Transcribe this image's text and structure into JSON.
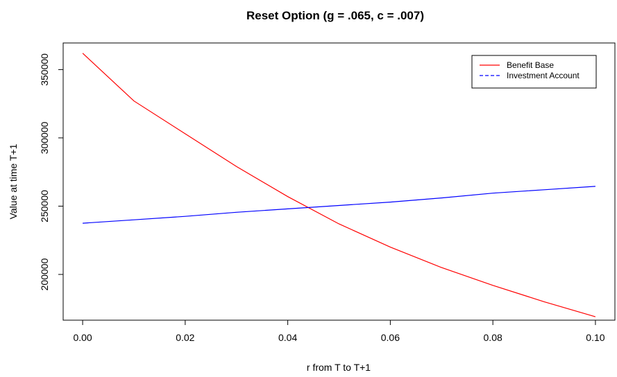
{
  "chart_data": {
    "type": "line",
    "title": "Reset Option (g = .065, c = .007)",
    "xlabel": "r from T to T+1",
    "ylabel": "Value at time T+1",
    "xlim": [
      -0.0038,
      0.1038
    ],
    "ylim": [
      166500,
      369500
    ],
    "x_ticks": [
      0.0,
      0.02,
      0.04,
      0.06,
      0.08,
      0.1
    ],
    "x_tick_labels": [
      "0.00",
      "0.02",
      "0.04",
      "0.06",
      "0.08",
      "0.10"
    ],
    "y_ticks": [
      200000,
      250000,
      300000,
      350000
    ],
    "y_tick_labels": [
      "200000",
      "250000",
      "300000",
      "350000"
    ],
    "grid": false,
    "legend_position": "top-right",
    "series": [
      {
        "name": "Benefit Base",
        "color": "#ff0000",
        "line_style": "solid",
        "x": [
          0.0,
          0.01,
          0.02,
          0.03,
          0.04,
          0.05,
          0.06,
          0.07,
          0.08,
          0.09,
          0.1
        ],
        "y": [
          362000,
          327000,
          303000,
          279000,
          257000,
          237000,
          220000,
          205000,
          192000,
          180000,
          169000
        ]
      },
      {
        "name": "Investment Account",
        "color": "#0000ff",
        "line_style": "dashed",
        "x": [
          0.0,
          0.01,
          0.02,
          0.03,
          0.04,
          0.05,
          0.06,
          0.07,
          0.08,
          0.09,
          0.1
        ],
        "y": [
          237500,
          240000,
          242500,
          245500,
          248000,
          250500,
          253000,
          256000,
          259500,
          262000,
          264500
        ]
      }
    ]
  }
}
